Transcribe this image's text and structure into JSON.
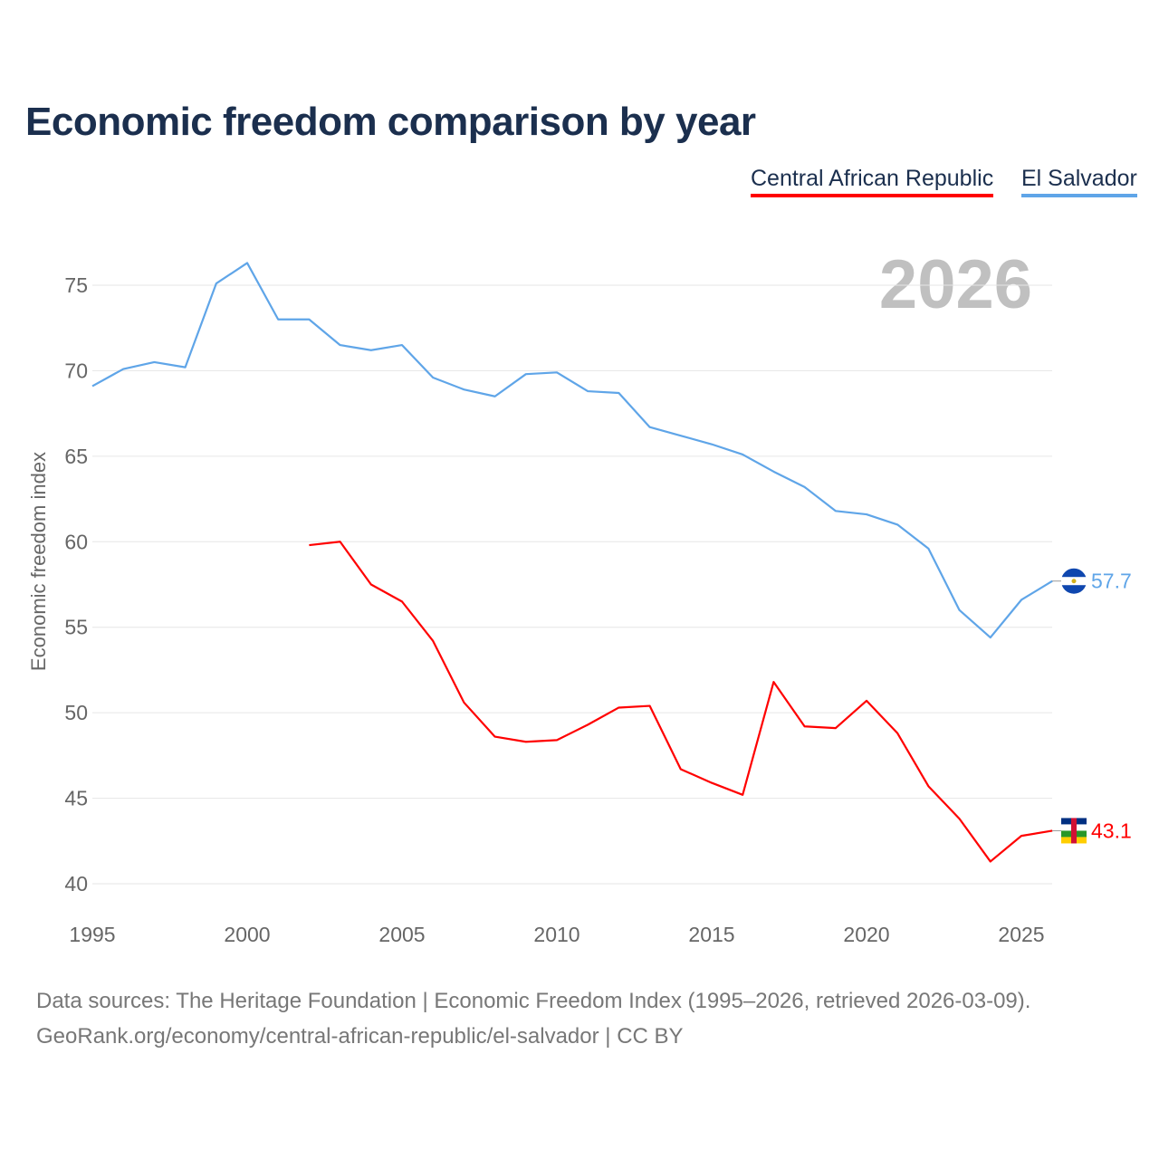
{
  "chart_data": {
    "type": "line",
    "title": "Economic freedom comparison by year",
    "ylabel": "Economic freedom index",
    "xlabel": "",
    "year_watermark": "2026",
    "xlim": [
      1995,
      2026
    ],
    "ylim": [
      40,
      77
    ],
    "x_ticks": [
      1995,
      2000,
      2005,
      2010,
      2015,
      2020,
      2025
    ],
    "y_ticks": [
      40,
      45,
      50,
      55,
      60,
      65,
      70,
      75
    ],
    "grid": true,
    "legend_position": "top-right",
    "series": [
      {
        "name": "Central African Republic",
        "color": "#ff0000",
        "end_label": "43.1",
        "x": [
          2002,
          2003,
          2004,
          2005,
          2006,
          2007,
          2008,
          2009,
          2010,
          2011,
          2012,
          2013,
          2014,
          2015,
          2016,
          2017,
          2018,
          2019,
          2020,
          2021,
          2022,
          2023,
          2024,
          2025,
          2026
        ],
        "values": [
          59.8,
          60.0,
          57.5,
          56.5,
          54.2,
          50.6,
          48.6,
          48.3,
          48.4,
          49.3,
          50.3,
          50.4,
          46.7,
          45.9,
          45.2,
          51.8,
          49.2,
          49.1,
          50.7,
          48.8,
          45.7,
          43.8,
          41.3,
          42.8,
          43.1
        ]
      },
      {
        "name": "El Salvador",
        "color": "#5fa5e8",
        "end_label": "57.7",
        "x": [
          1995,
          1996,
          1997,
          1998,
          1999,
          2000,
          2001,
          2002,
          2003,
          2004,
          2005,
          2006,
          2007,
          2008,
          2009,
          2010,
          2011,
          2012,
          2013,
          2014,
          2015,
          2016,
          2017,
          2018,
          2019,
          2020,
          2021,
          2022,
          2023,
          2024,
          2025,
          2026
        ],
        "values": [
          69.1,
          70.1,
          70.5,
          70.2,
          75.1,
          76.3,
          73.0,
          73.0,
          71.5,
          71.2,
          71.5,
          69.6,
          68.9,
          68.5,
          69.8,
          69.9,
          68.8,
          68.7,
          66.7,
          66.2,
          65.7,
          65.1,
          64.1,
          63.2,
          61.8,
          61.6,
          61.0,
          59.6,
          56.0,
          54.4,
          56.6,
          57.7
        ]
      }
    ]
  },
  "footer": {
    "line1": "Data sources: The Heritage Foundation | Economic Freedom Index (1995–2026, retrieved 2026-03-09).",
    "line2": "GeoRank.org/economy/central-african-republic/el-salvador | CC BY"
  }
}
